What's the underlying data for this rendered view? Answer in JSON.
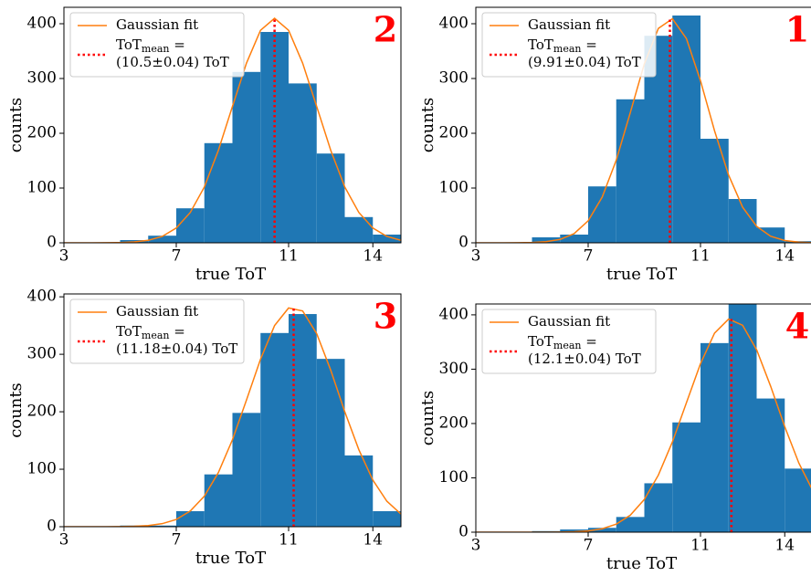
{
  "chart_data": [
    {
      "type": "histogram",
      "panel_label": "2",
      "xlabel": "true ToT",
      "ylabel": "counts",
      "bins": [
        5,
        6,
        7,
        8,
        9,
        10,
        11,
        12,
        13,
        14,
        15
      ],
      "counts": [
        5,
        13,
        63,
        182,
        312,
        385,
        291,
        163,
        47,
        15
      ],
      "color": "#1f77b4",
      "fit": {
        "name": "Gaussian fit",
        "color": "#ff7f0e",
        "x": [
          3,
          3.5,
          4,
          4.5,
          5,
          5.5,
          6,
          6.5,
          7,
          7.5,
          8,
          8.5,
          9,
          9.5,
          10,
          10.5,
          11,
          11.5,
          12,
          12.5,
          13,
          13.5,
          14,
          14.5,
          15
        ],
        "y": [
          0,
          0,
          0.03,
          0.14,
          0.5,
          1.6,
          4.5,
          11.7,
          27,
          55.5,
          102,
          169,
          249,
          328,
          388,
          410,
          388,
          328,
          249,
          169,
          102,
          55.5,
          27,
          11.7,
          4.5
        ]
      },
      "mean": {
        "value": 10.5,
        "color": "#ff0000",
        "symbol": "ToT",
        "subscript": "mean",
        "equals": " =",
        "label": "(10.5±0.04) ToT"
      },
      "xlim": [
        3,
        15
      ],
      "ylim": [
        0,
        430
      ],
      "xticks": [
        3,
        7,
        11,
        14
      ],
      "yticks": [
        0,
        100,
        200,
        300,
        400
      ]
    },
    {
      "type": "histogram",
      "panel_label": "1",
      "xlabel": "true ToT",
      "ylabel": "counts",
      "bins": [
        5,
        6,
        7,
        8,
        9,
        10,
        11,
        12,
        13,
        14,
        15
      ],
      "counts": [
        10,
        15,
        103,
        262,
        378,
        415,
        190,
        80,
        28,
        3
      ],
      "color": "#1f77b4",
      "fit": {
        "name": "Gaussian fit",
        "color": "#ff7f0e",
        "x": [
          3,
          3.5,
          4,
          4.5,
          5,
          5.5,
          6,
          6.5,
          7,
          7.5,
          8,
          8.5,
          9,
          9.5,
          10,
          10.5,
          11,
          11.5,
          12,
          12.5,
          13,
          13.5,
          14,
          14.5,
          15
        ],
        "y": [
          0,
          0,
          0.03,
          0.13,
          0.55,
          2,
          6.2,
          16.8,
          40.2,
          83.5,
          150.8,
          237.6,
          326.7,
          391.5,
          409.1,
          372.7,
          295.9,
          204.6,
          123.8,
          65.1,
          30,
          11.9,
          4.2,
          1.3,
          0.3
        ]
      },
      "mean": {
        "value": 9.91,
        "color": "#ff0000",
        "symbol": "ToT",
        "subscript": "mean",
        "equals": " =",
        "label": "(9.91±0.04) ToT"
      },
      "xlim": [
        3,
        15
      ],
      "ylim": [
        0,
        430
      ],
      "xticks": [
        3,
        7,
        11,
        14
      ],
      "yticks": [
        0,
        100,
        200,
        300,
        400
      ]
    },
    {
      "type": "histogram",
      "panel_label": "3",
      "xlabel": "true ToT",
      "ylabel": "counts",
      "bins": [
        5,
        6,
        7,
        8,
        9,
        10,
        11,
        12,
        13,
        14,
        15
      ],
      "counts": [
        2,
        2,
        27,
        91,
        198,
        337,
        370,
        292,
        124,
        27
      ],
      "color": "#1f77b4",
      "fit": {
        "name": "Gaussian fit",
        "color": "#ff7f0e",
        "x": [
          3,
          3.5,
          4,
          4.5,
          5,
          5.5,
          6,
          6.5,
          7,
          7.5,
          8,
          8.5,
          9,
          9.5,
          10,
          10.5,
          11,
          11.5,
          12,
          12.5,
          13,
          13.5,
          14,
          14.5,
          15
        ],
        "y": [
          0,
          0,
          0,
          0.06,
          0.22,
          0.7,
          2,
          5.3,
          12.6,
          27.3,
          53.1,
          94.3,
          151.3,
          220.4,
          291.5,
          349.9,
          380.6,
          375.4,
          336,
          272.3,
          200.2,
          134.1,
          81.1,
          44.3,
          22.1
        ]
      },
      "mean": {
        "value": 11.18,
        "color": "#ff0000",
        "symbol": "ToT",
        "subscript": "mean",
        "equals": " =",
        "label": "(11.18±0.04) ToT"
      },
      "xlim": [
        3,
        15
      ],
      "ylim": [
        0,
        405
      ],
      "xticks": [
        3,
        7,
        11,
        14
      ],
      "yticks": [
        0,
        100,
        200,
        300,
        400
      ]
    },
    {
      "type": "histogram",
      "panel_label": "4",
      "xlabel": "true ToT",
      "ylabel": "counts",
      "bins": [
        5,
        6,
        7,
        8,
        9,
        10,
        11,
        12,
        13,
        14,
        15
      ],
      "counts": [
        2,
        5,
        8,
        28,
        90,
        202,
        348,
        420,
        246,
        117
      ],
      "color": "#1f77b4",
      "fit": {
        "name": "Gaussian fit",
        "color": "#ff7f0e",
        "x": [
          3,
          3.5,
          4,
          4.5,
          5,
          5.5,
          6,
          6.5,
          7,
          7.5,
          8,
          8.5,
          9,
          9.5,
          10,
          10.5,
          11,
          11.5,
          12,
          12.5,
          13,
          13.5,
          14,
          14.5,
          15
        ],
        "y": [
          0,
          0,
          0,
          0,
          0.02,
          0.08,
          0.27,
          0.86,
          2.4,
          6.3,
          14.8,
          31.3,
          60.2,
          105.1,
          166.2,
          238.4,
          310.2,
          366.3,
          392.2,
          380.8,
          335.6,
          268.3,
          194.3,
          127.5,
          76.4
        ]
      },
      "mean": {
        "value": 12.1,
        "color": "#ff0000",
        "symbol": "ToT",
        "subscript": "mean",
        "equals": " =",
        "label": "(12.1±0.04) ToT"
      },
      "xlim": [
        3,
        15
      ],
      "ylim": [
        0,
        420
      ],
      "xticks": [
        3,
        7,
        11,
        14
      ],
      "yticks": [
        0,
        100,
        200,
        300,
        400
      ]
    }
  ]
}
